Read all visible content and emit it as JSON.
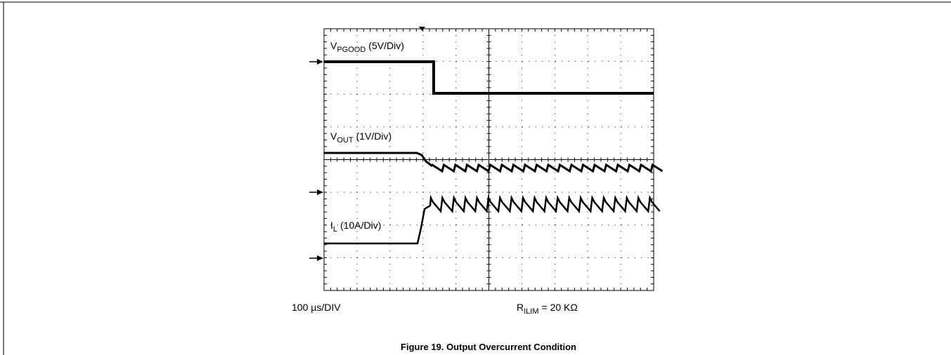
{
  "figure": {
    "traces": [
      {
        "symbol": "V",
        "subscript": "PGOOD",
        "scale": "(5V/Div)"
      },
      {
        "symbol": "V",
        "subscript": "OUT",
        "scale": "(1V/Div)"
      },
      {
        "symbol": "I",
        "subscript": "L",
        "scale": "(10A/Div)"
      }
    ],
    "timebase": "100 µs/DIV",
    "note": {
      "symbol": "R",
      "subscript": "ILIM",
      "rest": "= 20 KΩ"
    },
    "caption": "Figure 19. Output Overcurrent Condition"
  }
}
